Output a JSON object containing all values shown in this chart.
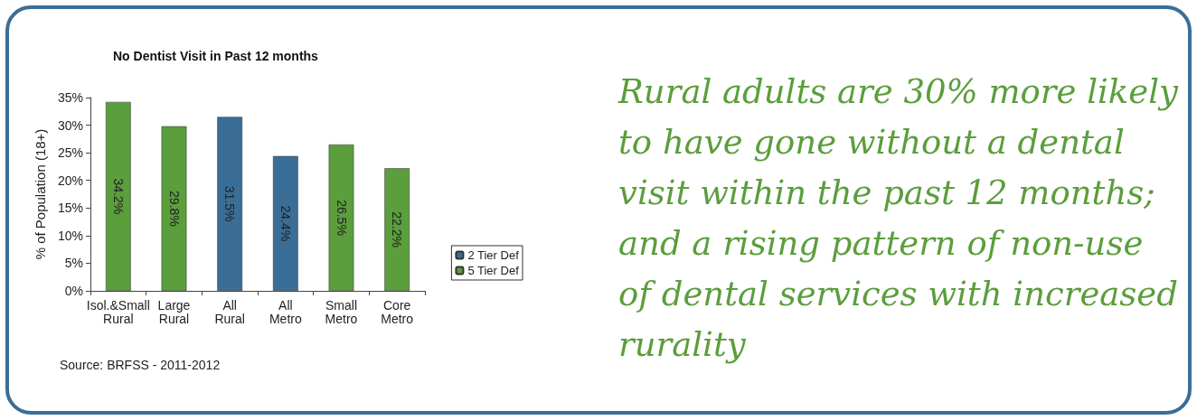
{
  "chart_data": {
    "type": "bar",
    "title": "No Dentist Visit in Past 12 months",
    "ylabel": "% of Population (18+)",
    "categories": [
      "Isol.&Small Rural",
      "Large Rural",
      "All Rural",
      "All Metro",
      "Small Metro",
      "Core Metro"
    ],
    "series": [
      {
        "name": "2 Tier Def",
        "color": "#3b6e96",
        "values": [
          null,
          null,
          31.5,
          24.4,
          null,
          null
        ],
        "value_labels": [
          null,
          null,
          "31.5%",
          "24.4%",
          null,
          null
        ]
      },
      {
        "name": "5 Tier Def",
        "color": "#5b9e3c",
        "values": [
          34.2,
          29.8,
          null,
          null,
          26.5,
          22.2
        ],
        "value_labels": [
          "34.2%",
          "29.8%",
          null,
          null,
          "26.5%",
          "22.2%"
        ]
      }
    ],
    "ylim": [
      0,
      35
    ],
    "yticks": [
      {
        "value": 0,
        "label": "0%"
      },
      {
        "value": 5,
        "label": "5%"
      },
      {
        "value": 10,
        "label": "10%"
      },
      {
        "value": 15,
        "label": "15%"
      },
      {
        "value": 20,
        "label": "20%"
      },
      {
        "value": 25,
        "label": "25%"
      },
      {
        "value": 30,
        "label": "30%"
      },
      {
        "value": 35,
        "label": "35%"
      }
    ],
    "legend": "bottom right",
    "annotations": [
      "Source: BRFSS - 2011-2012",
      "Rural adults are 30% more likely to have gone without a dental visit within the past 12 months; and a rising pattern of non-use of dental services with increased rurality"
    ]
  }
}
